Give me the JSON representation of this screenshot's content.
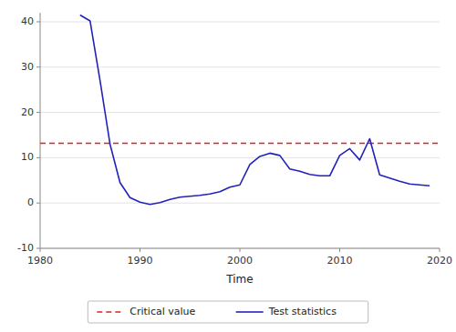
{
  "chart_data": {
    "type": "line",
    "x": [
      1984,
      1985,
      1986,
      1987,
      1988,
      1989,
      1990,
      1991,
      1992,
      1993,
      1994,
      1995,
      1996,
      1997,
      1998,
      1999,
      2000,
      2001,
      2002,
      2003,
      2004,
      2005,
      2006,
      2007,
      2008,
      2009,
      2010,
      2011,
      2012,
      2013,
      2014,
      2015,
      2016,
      2017,
      2018,
      2019
    ],
    "series": [
      {
        "name": "Critical value",
        "type": "hline",
        "color": "#DD2222",
        "line_style": "dashed",
        "value": 13.2
      },
      {
        "name": "Test statistics",
        "color": "#2222BB",
        "line_style": "solid",
        "values": [
          41.5,
          40.2,
          27.0,
          13.0,
          4.5,
          1.2,
          0.2,
          -0.3,
          0.1,
          0.8,
          1.3,
          1.5,
          1.7,
          2.0,
          2.5,
          3.5,
          4.0,
          8.5,
          10.3,
          11.0,
          10.5,
          7.5,
          7.0,
          6.3,
          6.0,
          6.0,
          10.5,
          12.0,
          9.5,
          14.2,
          6.2,
          5.5,
          4.8,
          4.2,
          4.0,
          3.8
        ]
      }
    ],
    "xlabel": "Time",
    "xlim": [
      1980,
      2020
    ],
    "xticks": [
      1980,
      1990,
      2000,
      2010,
      2020
    ],
    "ylim": [
      -10,
      42
    ],
    "yticks": [
      -10,
      0,
      10,
      20,
      30,
      40
    ],
    "grid": true,
    "legend": "bottom"
  }
}
